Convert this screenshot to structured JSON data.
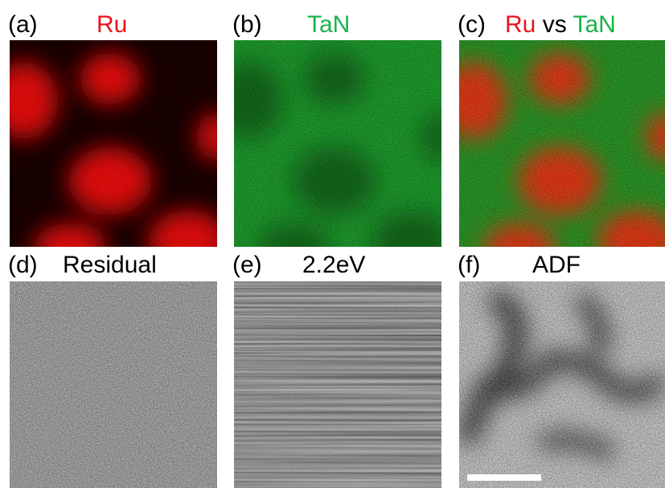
{
  "panels": [
    {
      "label": "(a)",
      "title": "Ru"
    },
    {
      "label": "(b)",
      "title": "TaN"
    },
    {
      "label": "(c)",
      "title": [
        "Ru",
        "vs",
        "TaN"
      ]
    },
    {
      "label": "(d)",
      "title": "Residual"
    },
    {
      "label": "(e)",
      "title": "2.2eV"
    },
    {
      "label": "(f)",
      "title": "ADF"
    }
  ]
}
